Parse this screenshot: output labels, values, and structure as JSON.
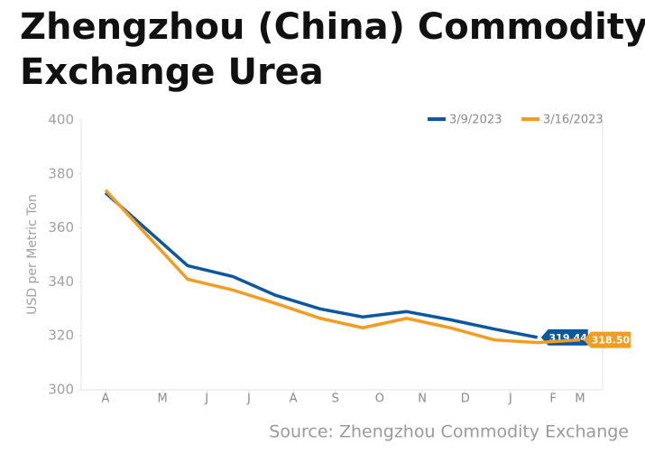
{
  "chart_data": {
    "type": "line",
    "title": "Zhengzhou (China) Commodity",
    "title_line2": "Exchange Urea",
    "y_label": "USD per Metric Ton",
    "source": "Source: Zhengzhou Commodity Exchange",
    "x": [
      0.56,
      2.45,
      3.49,
      4.48,
      5.5,
      6.48,
      7.49,
      8.49,
      9.51,
      10.5,
      11.48
    ],
    "xlim": [
      0,
      12
    ],
    "xticks": [
      {
        "value": 0.56,
        "label": "A"
      },
      {
        "value": 1.87,
        "label": "M"
      },
      {
        "value": 2.89,
        "label": "J"
      },
      {
        "value": 3.86,
        "label": "J"
      },
      {
        "value": 4.88,
        "label": "A"
      },
      {
        "value": 5.85,
        "label": "S"
      },
      {
        "value": 6.87,
        "label": "O"
      },
      {
        "value": 7.85,
        "label": "N"
      },
      {
        "value": 8.84,
        "label": "D"
      },
      {
        "value": 9.88,
        "label": "J"
      },
      {
        "value": 10.86,
        "label": "F"
      },
      {
        "value": 11.48,
        "label": "M"
      }
    ],
    "ylim": [
      300,
      400
    ],
    "yticks": [
      300,
      320,
      340,
      360,
      380,
      400
    ],
    "legend": "top-right",
    "series": [
      {
        "name": "3/9/2023",
        "color": "#0b57a0",
        "values": [
          373,
          346,
          342,
          335,
          330,
          327,
          329,
          326,
          322.5,
          319.44,
          null
        ]
      },
      {
        "name": "3/16/2023",
        "color": "#f39c1f",
        "values": [
          374,
          341,
          337,
          332,
          326.5,
          323,
          326.5,
          323,
          318.5,
          317.5,
          318.5
        ],
        "value_labels": [
          null,
          null,
          null,
          null,
          null,
          null,
          null,
          null,
          null,
          null,
          "318.50"
        ]
      }
    ]
  }
}
